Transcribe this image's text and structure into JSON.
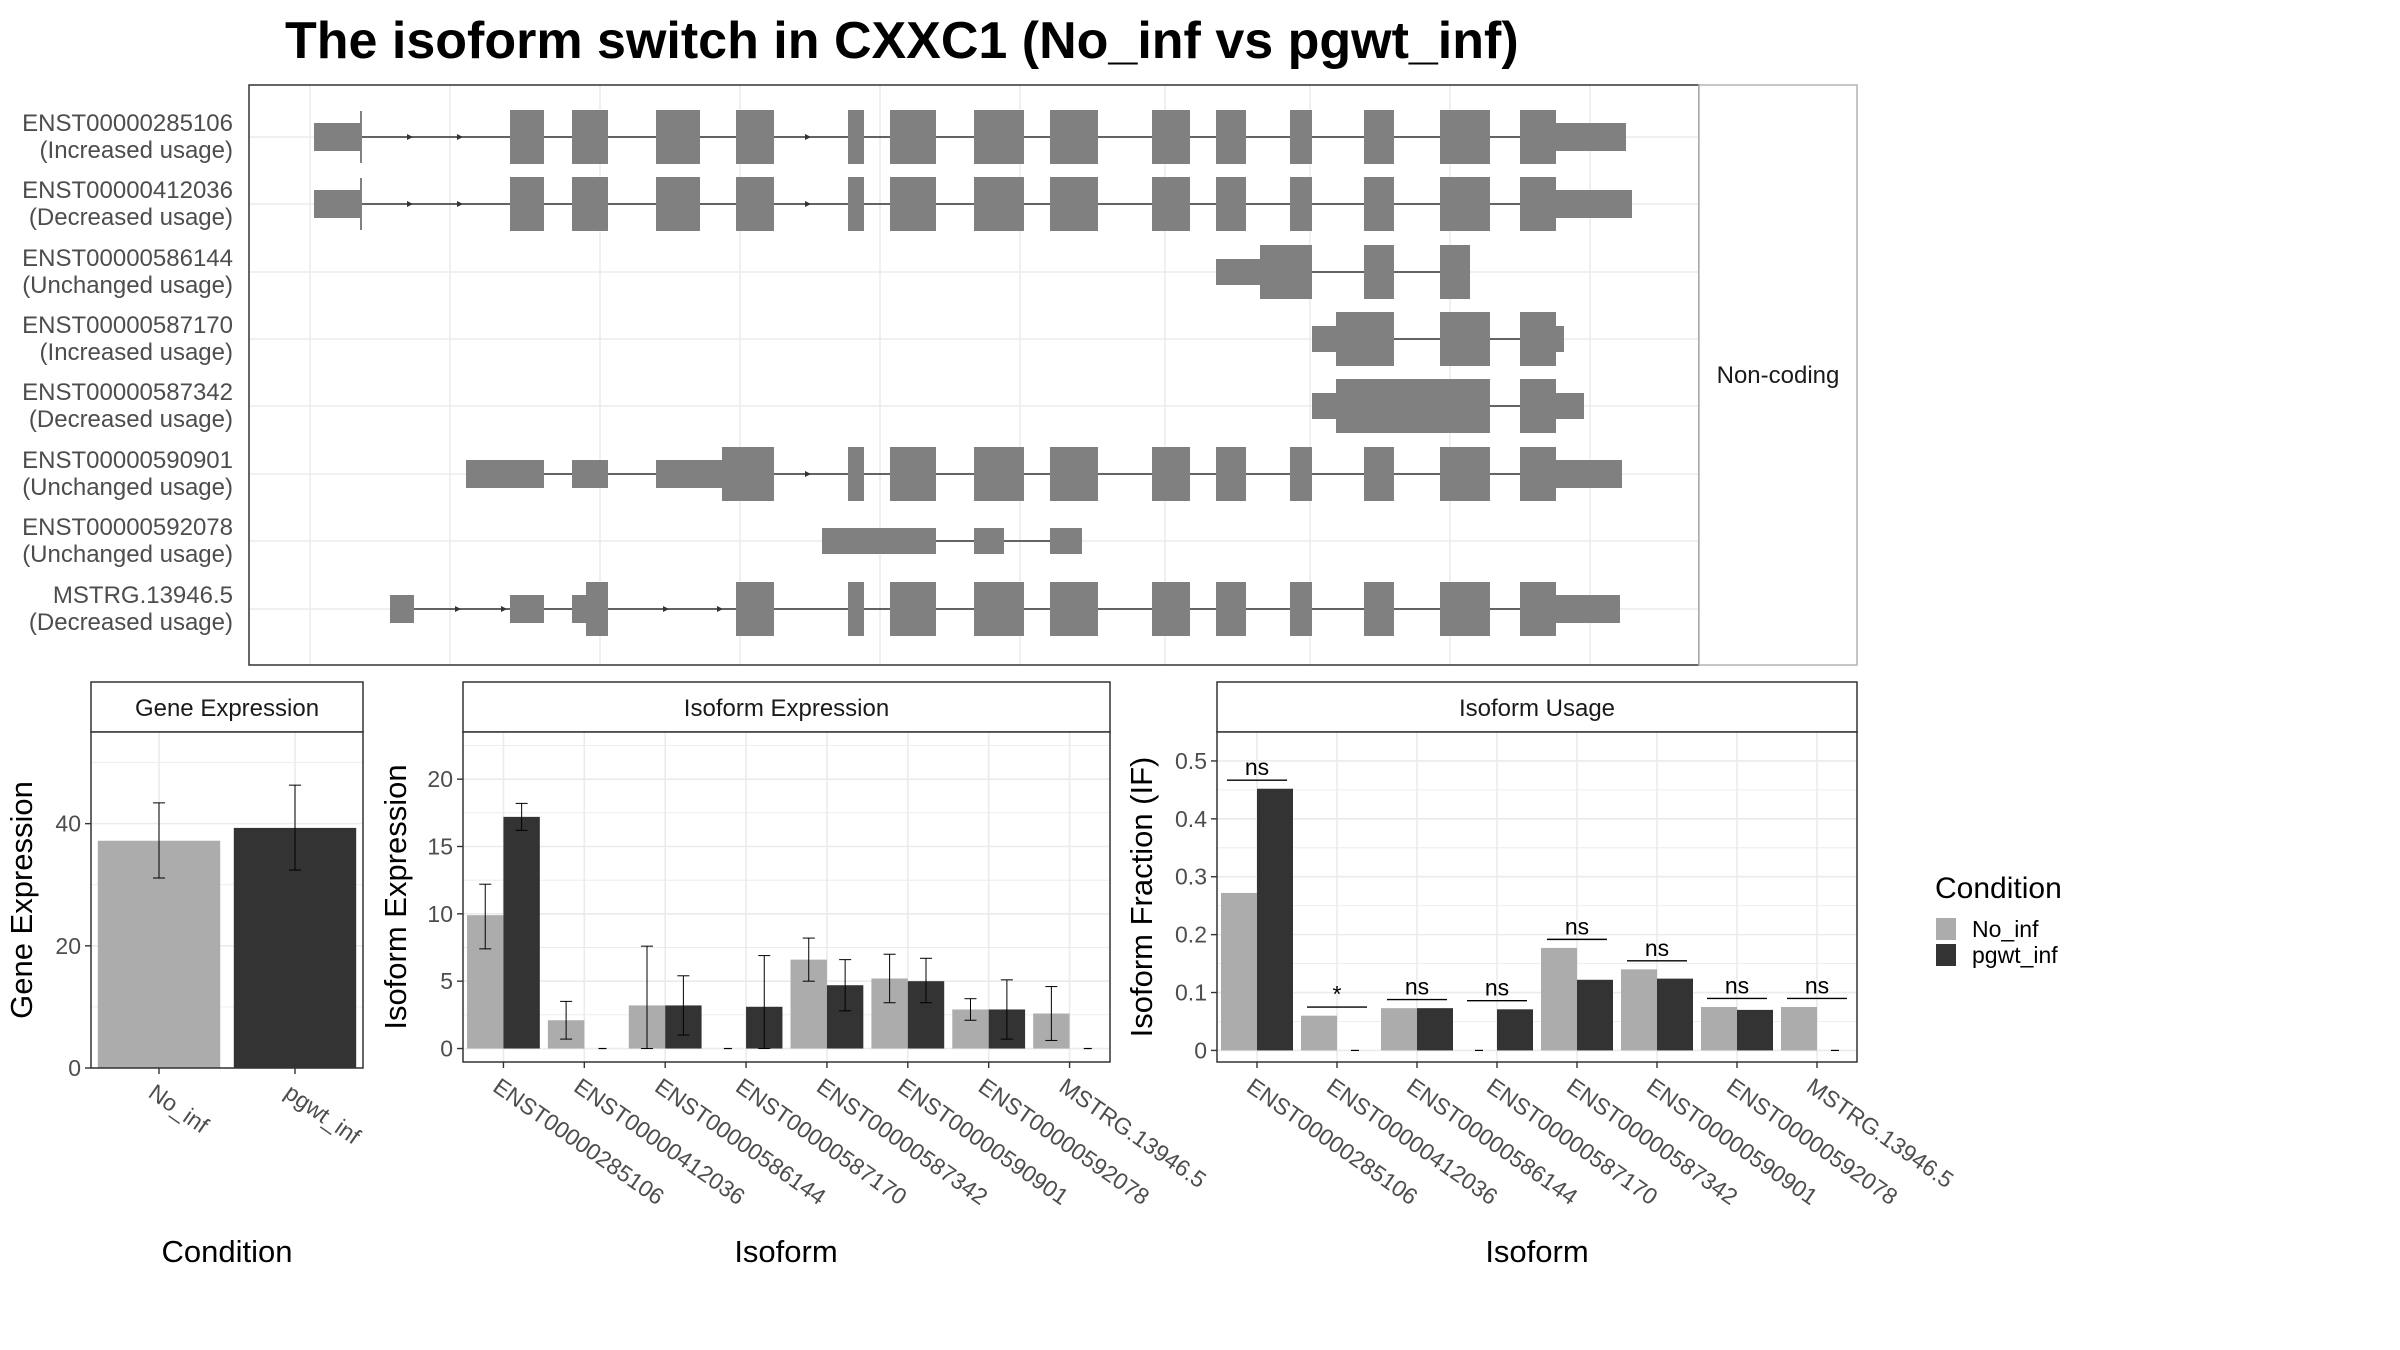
{
  "title": "The isoform switch in CXXC1 (No_inf vs pgwt_inf)",
  "colors": {
    "no_inf": "#acacac",
    "pgwt_inf": "#333333",
    "exon": "#808080",
    "grid": "#ebebeb",
    "panel_border": "#333333",
    "strip_fill": "#ffffff"
  },
  "legend": {
    "title": "Condition",
    "items": [
      {
        "label": "No_inf",
        "color": "#acacac"
      },
      {
        "label": "pgwt_inf",
        "color": "#333333"
      }
    ]
  },
  "structure": {
    "strip_label": "Non-coding",
    "transcripts": [
      {
        "id": "ENST00000285106",
        "status": "(Increased usage)"
      },
      {
        "id": "ENST00000412036",
        "status": "(Decreased usage)"
      },
      {
        "id": "ENST00000586144",
        "status": "(Unchanged usage)"
      },
      {
        "id": "ENST00000587170",
        "status": "(Increased usage)"
      },
      {
        "id": "ENST00000587342",
        "status": "(Decreased usage)"
      },
      {
        "id": "ENST00000590901",
        "status": "(Unchanged usage)"
      },
      {
        "id": "ENST00000592078",
        "status": "(Unchanged usage)"
      },
      {
        "id": "MSTRG.13946.5",
        "status": "(Decreased usage)"
      }
    ]
  },
  "chart_data": [
    {
      "type": "bar",
      "panel": "Gene Expression",
      "title": "",
      "xlabel": "Condition",
      "ylabel": "Gene Expression",
      "categories": [
        "No_inf",
        "pgwt_inf"
      ],
      "values": [
        37.2,
        39.3
      ],
      "error_low": [
        31.1,
        32.4
      ],
      "error_high": [
        43.4,
        46.3
      ],
      "ylim": [
        0,
        55
      ],
      "yticks": [
        0,
        20,
        40
      ],
      "grid": true
    },
    {
      "type": "bar",
      "panel": "Isoform Expression",
      "title": "",
      "xlabel": "Isoform",
      "ylabel": "Isoform Expression",
      "categories": [
        "ENST00000285106",
        "ENST00000412036",
        "ENST00000586144",
        "ENST00000587170",
        "ENST00000587342",
        "ENST00000590901",
        "ENST00000592078",
        "MSTRG.13946.5"
      ],
      "series": [
        {
          "name": "No_inf",
          "values": [
            9.9,
            2.1,
            3.2,
            0.0,
            6.6,
            5.2,
            2.9,
            2.6
          ],
          "error_low": [
            7.4,
            0.7,
            0.0,
            0.0,
            5.0,
            3.4,
            2.1,
            0.6
          ],
          "error_high": [
            12.2,
            3.5,
            7.6,
            0.0,
            8.2,
            7.0,
            3.7,
            4.6
          ]
        },
        {
          "name": "pgwt_inf",
          "values": [
            17.2,
            0.0,
            3.2,
            3.1,
            4.7,
            5.0,
            2.9,
            0.0
          ],
          "error_low": [
            16.2,
            0.0,
            1.0,
            0.0,
            2.8,
            3.4,
            0.7,
            0.0
          ],
          "error_high": [
            18.2,
            0.0,
            5.4,
            6.9,
            6.6,
            6.7,
            5.1,
            0.0
          ]
        }
      ],
      "ylim": [
        -1,
        23.5
      ],
      "yticks": [
        0,
        5,
        10,
        15,
        20
      ],
      "grid": true
    },
    {
      "type": "bar",
      "panel": "Isoform Usage",
      "title": "",
      "xlabel": "Isoform",
      "ylabel": "Isoform Fraction (IF)",
      "categories": [
        "ENST00000285106",
        "ENST00000412036",
        "ENST00000586144",
        "ENST00000587170",
        "ENST00000587342",
        "ENST00000590901",
        "ENST00000592078",
        "MSTRG.13946.5"
      ],
      "series": [
        {
          "name": "No_inf",
          "values": [
            0.272,
            0.06,
            0.073,
            0.0,
            0.177,
            0.14,
            0.075,
            0.075
          ]
        },
        {
          "name": "pgwt_inf",
          "values": [
            0.452,
            0.0,
            0.073,
            0.071,
            0.122,
            0.124,
            0.07,
            0.0
          ]
        }
      ],
      "significance": [
        "ns",
        "*",
        "ns",
        "ns",
        "ns",
        "ns",
        "ns",
        "ns"
      ],
      "ylim": [
        -0.02,
        0.55
      ],
      "yticks": [
        0.0,
        0.1,
        0.2,
        0.3,
        0.4,
        0.5
      ],
      "grid": true
    }
  ]
}
